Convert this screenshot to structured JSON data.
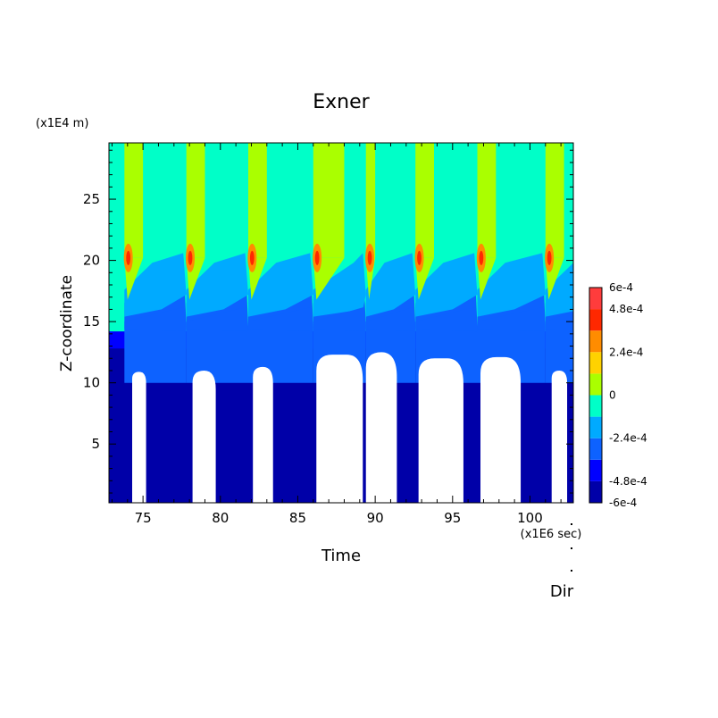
{
  "chart_data": {
    "type": "contour",
    "title": "Exner",
    "xlabel": "Time",
    "ylabel": "Z-coordinate",
    "x_unit": "(x1E6 sec)",
    "y_unit": "(x1E4 m)",
    "xlim": [
      72.8,
      102.8
    ],
    "ylim": [
      0.2,
      29.6
    ],
    "xticks": [
      75,
      80,
      85,
      90,
      95,
      100
    ],
    "yticks": [
      5,
      10,
      15,
      20,
      25
    ],
    "xtick_labels": [
      "75",
      "80",
      "85",
      "90",
      "95",
      "100"
    ],
    "ytick_labels": [
      "5",
      "10",
      "15",
      "20",
      "25"
    ],
    "footer_label": "Dir",
    "colorbar": {
      "levels": [
        -0.0006,
        -0.00048,
        -0.00036,
        -0.00024,
        -0.00012,
        0,
        0.00012,
        0.00024,
        0.00036,
        0.00048,
        0.0006
      ],
      "tick_labels": [
        "6e-4",
        "4.8e-4",
        "2.4e-4",
        "0",
        "-2.4e-4",
        "-4.8e-4",
        "-6e-4"
      ],
      "tick_values": [
        0.0006,
        0.00048,
        0.00024,
        0,
        -0.00024,
        -0.00048,
        -0.0006
      ],
      "colors": [
        "#0000a8",
        "#0000ff",
        "#0d62ff",
        "#00aaff",
        "#00ffc8",
        "#aaff00",
        "#ffd200",
        "#ff8c00",
        "#ff2800",
        "#ff3c3c"
      ]
    },
    "fields": {
      "background": "#00ffc8",
      "bands": {
        "darkest": "#0000a8",
        "deep": "#0000ff",
        "mid": "#0d62ff",
        "light": "#00aaff",
        "high": "#aaff00",
        "orange": "#ff8c00",
        "red": "#ff2800",
        "empty": "#ffffff"
      }
    },
    "pulses": [
      {
        "start": 73.8,
        "end": 75.0,
        "peak_z": 20.2
      },
      {
        "start": 77.8,
        "end": 79.0,
        "peak_z": 20.2
      },
      {
        "start": 81.8,
        "end": 83.0,
        "peak_z": 20.2
      },
      {
        "start": 86.0,
        "end": 88.0,
        "peak_z": 20.2
      },
      {
        "start": 89.4,
        "end": 90.0,
        "peak_z": 20.2
      },
      {
        "start": 92.6,
        "end": 93.8,
        "peak_z": 20.2
      },
      {
        "start": 96.6,
        "end": 97.8,
        "peak_z": 20.2
      },
      {
        "start": 101.0,
        "end": 102.2,
        "peak_z": 20.2
      }
    ],
    "cores": [
      {
        "start": 74.3,
        "end": 75.2,
        "top_z": 10.9
      },
      {
        "start": 78.2,
        "end": 79.7,
        "top_z": 11.0
      },
      {
        "start": 82.1,
        "end": 83.4,
        "top_z": 11.3
      },
      {
        "start": 86.2,
        "end": 89.2,
        "top_z": 12.3
      },
      {
        "start": 89.4,
        "end": 91.4,
        "top_z": 12.5
      },
      {
        "start": 92.8,
        "end": 95.7,
        "top_z": 12.0
      },
      {
        "start": 96.8,
        "end": 99.4,
        "top_z": 12.1
      },
      {
        "start": 101.4,
        "end": 102.4,
        "top_z": 11.0
      }
    ]
  }
}
